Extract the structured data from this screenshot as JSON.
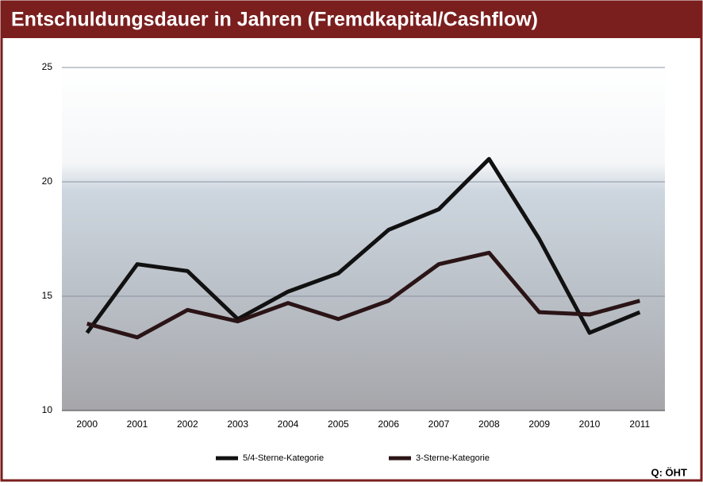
{
  "chart_data": {
    "type": "line",
    "title": "Entschuldungsdauer in Jahren (Fremdkapital/Cashflow)",
    "categories": [
      "2000",
      "2001",
      "2002",
      "2003",
      "2004",
      "2005",
      "2006",
      "2007",
      "2008",
      "2009",
      "2010",
      "2011"
    ],
    "series": [
      {
        "name": "5/4-Sterne-Kategorie",
        "color": "#111111",
        "values": [
          13.4,
          16.4,
          16.1,
          14.0,
          15.2,
          16.0,
          17.9,
          18.8,
          21.0,
          17.5,
          13.4,
          14.3
        ]
      },
      {
        "name": "3-Sterne-Kategorie",
        "color": "#2a1416",
        "values": [
          13.8,
          13.2,
          14.4,
          13.9,
          14.7,
          14.0,
          14.8,
          16.4,
          16.9,
          14.3,
          14.2,
          14.8
        ]
      }
    ],
    "ylim": [
      10,
      25
    ],
    "yticks": [
      10,
      15,
      20,
      25
    ],
    "grid": true,
    "source": "Q: ÖHT"
  }
}
